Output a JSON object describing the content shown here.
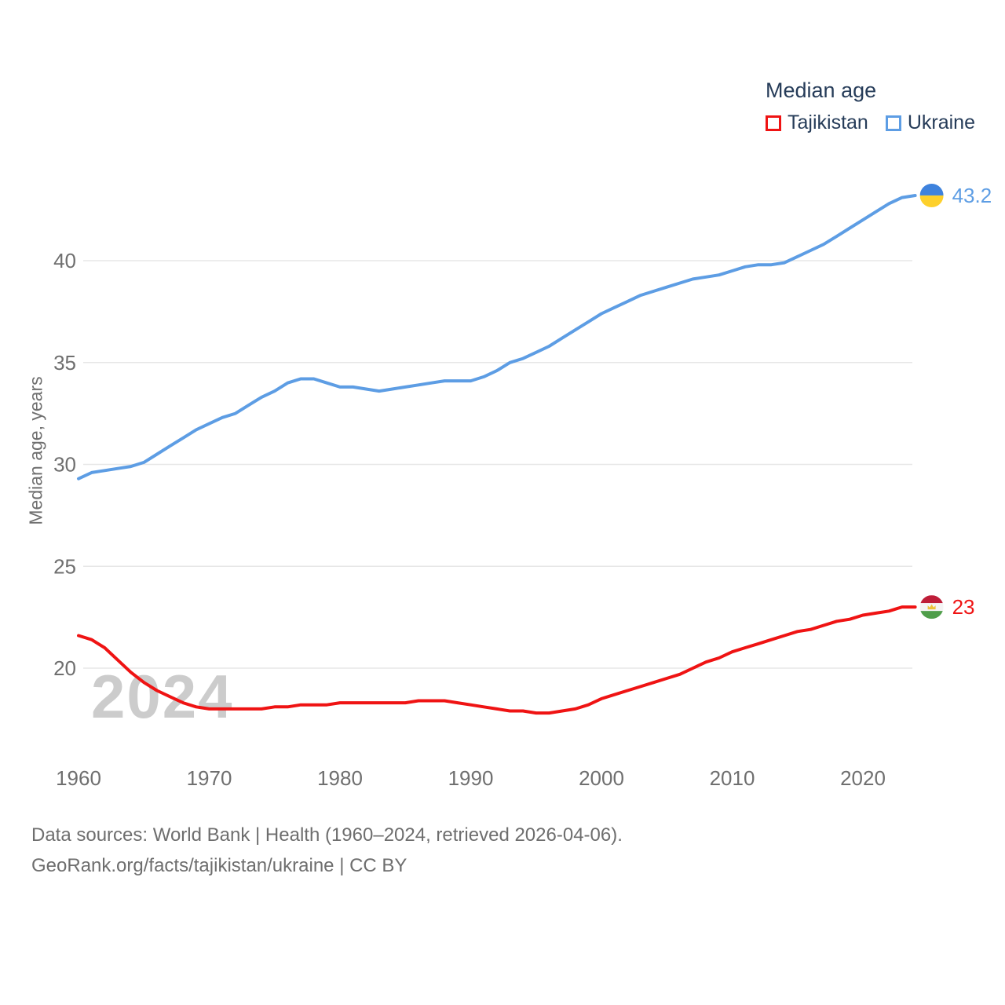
{
  "legend": {
    "title": "Median age",
    "items": [
      {
        "label": "Tajikistan",
        "color": "#ef1313"
      },
      {
        "label": "Ukraine",
        "color": "#5d9de4"
      }
    ]
  },
  "watermark": "2024",
  "footer": {
    "line1": "Data sources: World Bank | Health (1960–2024, retrieved 2026-04-06).",
    "line2": "GeoRank.org/facts/tajikistan/ukraine | CC BY"
  },
  "chart_data": {
    "type": "line",
    "title": "Median age",
    "xlabel": "",
    "ylabel": "Median age, years",
    "grid": true,
    "legend_position": "top-right",
    "x_range": [
      1960,
      2024
    ],
    "y_range": [
      17.5,
      44
    ],
    "x_ticks": [
      1960,
      1970,
      1980,
      1990,
      2000,
      2010,
      2020
    ],
    "y_ticks": [
      20,
      25,
      30,
      35,
      40
    ],
    "series": [
      {
        "name": "Tajikistan",
        "color": "#ef1313",
        "end_label": "23",
        "end_value": 23,
        "flag": {
          "type": "tajikistan",
          "stripes": [
            "#be1d38",
            "#f4f4f4",
            "#4f9e4a"
          ],
          "emblem": "#edc33b"
        },
        "values": [
          21.6,
          21.4,
          21.0,
          20.4,
          19.8,
          19.3,
          18.9,
          18.6,
          18.3,
          18.1,
          18.0,
          18.0,
          18.0,
          18.0,
          18.0,
          18.1,
          18.1,
          18.2,
          18.2,
          18.2,
          18.3,
          18.3,
          18.3,
          18.3,
          18.3,
          18.3,
          18.4,
          18.4,
          18.4,
          18.3,
          18.2,
          18.1,
          18.0,
          17.9,
          17.9,
          17.8,
          17.8,
          17.9,
          18.0,
          18.2,
          18.5,
          18.7,
          18.9,
          19.1,
          19.3,
          19.5,
          19.7,
          20.0,
          20.3,
          20.5,
          20.8,
          21.0,
          21.2,
          21.4,
          21.6,
          21.8,
          21.9,
          22.1,
          22.3,
          22.4,
          22.6,
          22.7,
          22.8,
          23.0,
          23.0
        ]
      },
      {
        "name": "Ukraine",
        "color": "#5d9de4",
        "end_label": "43.2",
        "end_value": 43.2,
        "flag": {
          "type": "ukraine",
          "stripes": [
            "#3e82dd",
            "#fdd02c"
          ]
        },
        "values": [
          29.3,
          29.6,
          29.7,
          29.8,
          29.9,
          30.1,
          30.5,
          30.9,
          31.3,
          31.7,
          32.0,
          32.3,
          32.5,
          32.9,
          33.3,
          33.6,
          34.0,
          34.2,
          34.2,
          34.0,
          33.8,
          33.8,
          33.7,
          33.6,
          33.7,
          33.8,
          33.9,
          34.0,
          34.1,
          34.1,
          34.1,
          34.3,
          34.6,
          35.0,
          35.2,
          35.5,
          35.8,
          36.2,
          36.6,
          37.0,
          37.4,
          37.7,
          38.0,
          38.3,
          38.5,
          38.7,
          38.9,
          39.1,
          39.2,
          39.3,
          39.5,
          39.7,
          39.8,
          39.8,
          39.9,
          40.2,
          40.5,
          40.8,
          41.2,
          41.6,
          42.0,
          42.4,
          42.8,
          43.1,
          43.2
        ]
      }
    ]
  }
}
